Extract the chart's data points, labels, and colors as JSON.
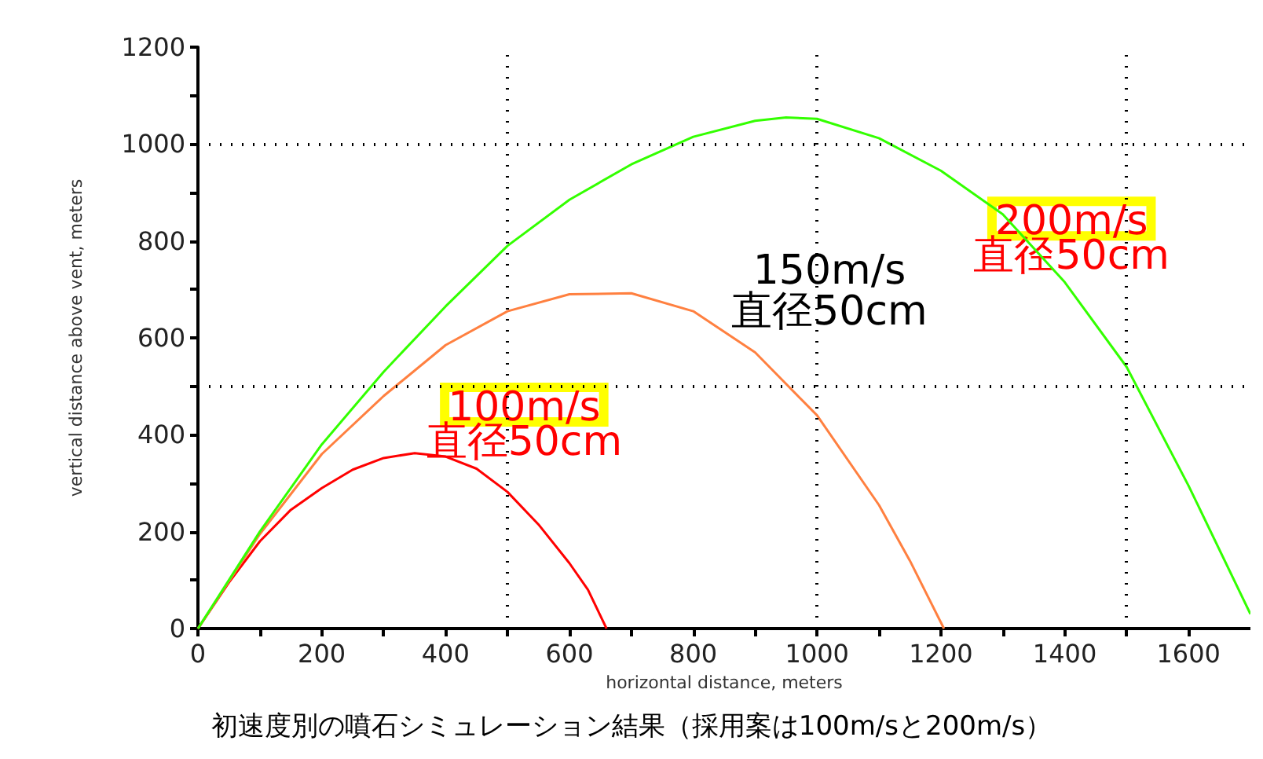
{
  "chart_data": {
    "type": "line",
    "xlabel": "horizontal distance, meters",
    "ylabel": "vertical distance above vent, meters",
    "xlim": [
      0,
      1700
    ],
    "ylim": [
      0,
      1200
    ],
    "xticks": [
      0,
      {
        "value": 100,
        "label": null
      },
      200,
      {
        "value": 300,
        "label": null
      },
      400,
      {
        "value": 500,
        "label": null
      },
      600,
      {
        "value": 700,
        "label": null
      },
      800,
      {
        "value": 900,
        "label": null
      },
      1000,
      {
        "value": 1100,
        "label": null
      },
      1200,
      {
        "value": 1300,
        "label": null
      },
      1400,
      {
        "value": 1500,
        "label": null
      },
      1600
    ],
    "yticks": [
      0,
      {
        "value": 100,
        "label": null
      },
      200,
      {
        "value": 300,
        "label": null
      },
      400,
      {
        "value": 500,
        "label": null
      },
      600,
      {
        "value": 700,
        "label": null
      },
      800,
      {
        "value": 900,
        "label": null
      },
      1000,
      {
        "value": 1100,
        "label": null
      },
      1200
    ],
    "series": [
      {
        "color": "#ff0000",
        "x": [
          0,
          50,
          100,
          150,
          200,
          250,
          300,
          350,
          400,
          450,
          500,
          550,
          600,
          630,
          660
        ],
        "values": [
          0,
          95,
          180,
          245,
          290,
          328,
          352,
          362,
          355,
          330,
          282,
          215,
          135,
          80,
          0
        ]
      },
      {
        "color": "#ff8040",
        "x": [
          0,
          100,
          200,
          300,
          400,
          500,
          600,
          700,
          800,
          900,
          1000,
          1100,
          1150,
          1205
        ],
        "values": [
          0,
          195,
          360,
          480,
          585,
          655,
          690,
          692,
          655,
          570,
          440,
          255,
          140,
          0
        ]
      },
      {
        "color": "#33ff00",
        "x": [
          0,
          100,
          200,
          300,
          400,
          500,
          600,
          700,
          800,
          900,
          950,
          1000,
          1100,
          1200,
          1300,
          1400,
          1500,
          1600,
          1700
        ],
        "values": [
          0,
          200,
          380,
          530,
          665,
          790,
          885,
          958,
          1015,
          1048,
          1055,
          1052,
          1012,
          945,
          855,
          715,
          540,
          295,
          30
        ]
      }
    ],
    "ref_lines": [
      {
        "axis": "x",
        "value": 500,
        "color": "#000000",
        "line_style": "dotted"
      },
      {
        "axis": "x",
        "value": 1000,
        "color": "#000000",
        "line_style": "dotted"
      },
      {
        "axis": "x",
        "value": 1500,
        "color": "#000000",
        "line_style": "dotted"
      },
      {
        "axis": "y",
        "value": 500,
        "color": "#000000",
        "line_style": "dotted"
      },
      {
        "axis": "y",
        "value": 1000,
        "color": "#000000",
        "line_style": "dotted"
      }
    ],
    "annotations": [
      "100m/s\n直径50cm",
      "150m/s\n直径50cm",
      "200m/s\n直径50cm",
      "初速度別の噴石シミュレーション結果（採用案は100m/sと200m/s）"
    ],
    "marker": "none",
    "line_style": "solid",
    "grid": false
  }
}
